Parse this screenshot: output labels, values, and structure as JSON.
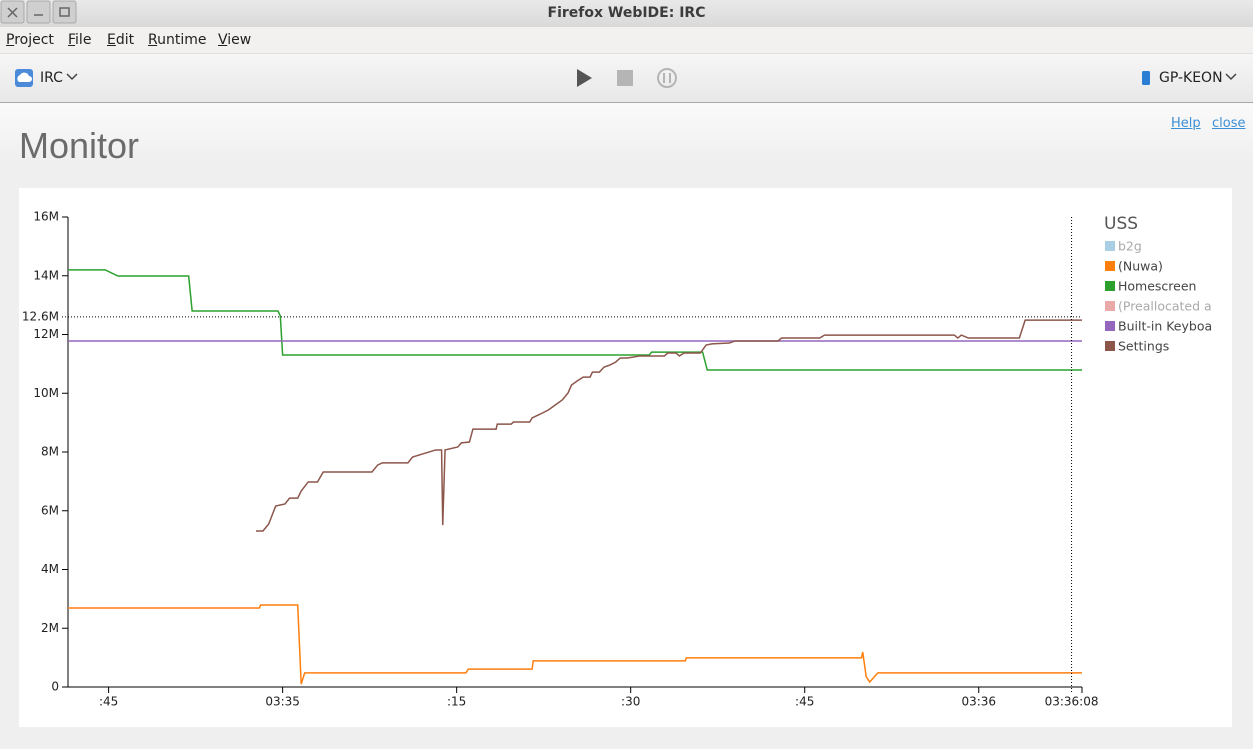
{
  "window": {
    "title": "Firefox WebIDE: IRC"
  },
  "menu": [
    "Project",
    "File",
    "Edit",
    "Runtime",
    "View"
  ],
  "toolbar": {
    "project": "IRC",
    "runtime": "GP-KEON"
  },
  "links": [
    "Help",
    "close"
  ],
  "heading": "Monitor",
  "chart_data": {
    "type": "line",
    "legend_title": "USS",
    "xlim": [
      12881.5,
      12968.9
    ],
    "xticks": [
      {
        "value": 12885,
        "label": ":45"
      },
      {
        "value": 12900,
        "label": "03:35"
      },
      {
        "value": 12915,
        "label": ":15"
      },
      {
        "value": 12930,
        "label": ":30"
      },
      {
        "value": 12945,
        "label": ":45"
      },
      {
        "value": 12960,
        "label": "03:36"
      }
    ],
    "ylim": [
      0,
      16
    ],
    "yticks": [
      0,
      {
        "value": 2,
        "label": "2M"
      },
      {
        "value": 4,
        "label": "4M"
      },
      {
        "value": 6,
        "label": "6M"
      },
      {
        "value": 8,
        "label": "8M"
      },
      {
        "value": 10,
        "label": "10M"
      },
      {
        "value": 12,
        "label": "12M"
      },
      {
        "value": 14,
        "label": "14M"
      },
      {
        "value": 16,
        "label": "16M"
      }
    ],
    "cursor": {
      "x": {
        "value": 12968,
        "label": "03:36:08"
      },
      "y": {
        "value": 12.6,
        "label": "12.6M"
      }
    },
    "series": [
      {
        "name": "b2g",
        "color": "#9ecae1",
        "hidden": true,
        "x": [],
        "values": []
      },
      {
        "name": "(Nuwa)",
        "color": "#ff7f0e",
        "hidden": false,
        "x": [
          12881.5,
          12898.0,
          12898.1,
          12901.3,
          12901.6,
          12901.9,
          12915.8,
          12916.0,
          12921.5,
          12921.6,
          12934.7,
          12934.8,
          12949.9,
          12950.0,
          12950.3,
          12950.6,
          12951.3,
          12968.9
        ],
        "values": [
          2.69,
          2.69,
          2.79,
          2.79,
          0.1,
          0.48,
          0.48,
          0.61,
          0.61,
          0.89,
          0.89,
          0.99,
          0.99,
          1.19,
          0.35,
          0.17,
          0.48,
          0.48
        ]
      },
      {
        "name": "Homescreen",
        "color": "#2ca02c",
        "hidden": false,
        "x": [
          12881.5,
          12884.7,
          12885.8,
          12891.9,
          12892.2,
          12899.6,
          12899.8,
          12900.0,
          12931.6,
          12931.8,
          12936.2,
          12936.6,
          12968.9
        ],
        "values": [
          14.2,
          14.2,
          13.99,
          13.99,
          12.8,
          12.8,
          12.63,
          11.3,
          11.3,
          11.4,
          11.4,
          10.79,
          10.79
        ]
      },
      {
        "name": "(Preallocated a",
        "color": "#e8a0a0",
        "hidden": true,
        "x": [],
        "values": []
      },
      {
        "name": "Built-in Keyboa",
        "color": "#9467bd",
        "hidden": false,
        "x": [
          12881.5,
          12968.9
        ],
        "values": [
          11.78,
          11.78
        ]
      },
      {
        "name": "Settings",
        "color": "#8c564b",
        "hidden": false,
        "x": [
          12897.7,
          12898.3,
          12898.8,
          12899.4,
          12900.2,
          12900.6,
          12901.3,
          12901.6,
          12902.2,
          12903.0,
          12903.5,
          12907.7,
          12908.2,
          12908.6,
          12910.8,
          12911.2,
          12913.2,
          12913.7,
          12913.8,
          12914.0,
          12915.1,
          12915.4,
          12916.1,
          12916.4,
          12918.4,
          12918.5,
          12919.7,
          12919.9,
          12921.3,
          12921.5,
          12922.2,
          12922.9,
          12923.5,
          12924.1,
          12924.6,
          12924.9,
          12925.4,
          12925.9,
          12926.5,
          12926.7,
          12927.3,
          12927.7,
          12928.2,
          12928.7,
          12929.1,
          12929.7,
          12930.2,
          12930.8,
          12932.9,
          12933.2,
          12933.9,
          12934.2,
          12934.6,
          12936.0,
          12936.5,
          12937.0,
          12938.5,
          12939.0,
          12942.7,
          12943.0,
          12946.3,
          12946.7,
          12957.9,
          12958.2,
          12958.5,
          12959.1,
          12963.5,
          12964.0,
          12968.9
        ],
        "values": [
          5.31,
          5.31,
          5.55,
          6.16,
          6.23,
          6.43,
          6.43,
          6.67,
          6.98,
          6.98,
          7.32,
          7.32,
          7.56,
          7.63,
          7.63,
          7.83,
          8.07,
          8.07,
          5.51,
          8.07,
          8.17,
          8.31,
          8.34,
          8.78,
          8.78,
          8.95,
          8.95,
          9.02,
          9.02,
          9.16,
          9.29,
          9.43,
          9.6,
          9.77,
          10.01,
          10.28,
          10.42,
          10.55,
          10.55,
          10.72,
          10.72,
          10.89,
          10.96,
          11.06,
          11.2,
          11.2,
          11.23,
          11.27,
          11.27,
          11.37,
          11.37,
          11.27,
          11.37,
          11.37,
          11.64,
          11.68,
          11.71,
          11.78,
          11.78,
          11.88,
          11.88,
          11.98,
          11.98,
          11.88,
          11.98,
          11.88,
          11.88,
          12.49,
          12.49
        ]
      }
    ]
  }
}
